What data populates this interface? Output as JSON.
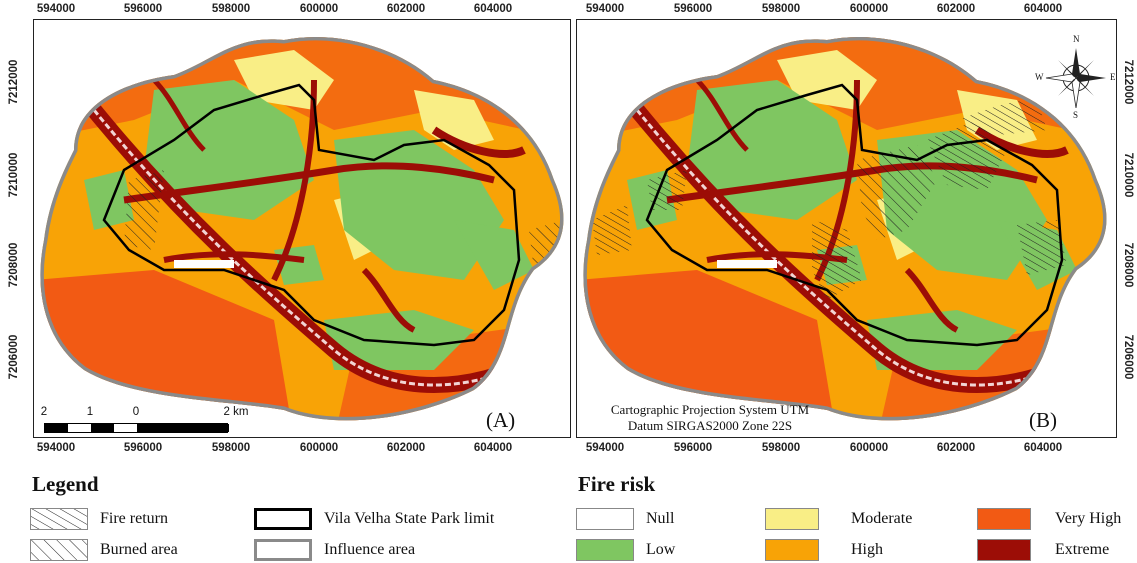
{
  "axes": {
    "x_ticks": [
      "594000",
      "596000",
      "598000",
      "600000",
      "602000",
      "604000"
    ],
    "y_ticks": [
      "7212000",
      "7210000",
      "7208000",
      "7206000"
    ]
  },
  "panels": [
    {
      "label": "(A)"
    },
    {
      "label": "(B)"
    }
  ],
  "scalebar": {
    "labels": [
      "2",
      "1",
      "0",
      "2 km"
    ]
  },
  "compass": {
    "n": "N",
    "s": "S",
    "e": "E",
    "w": "W"
  },
  "projection": {
    "line1": "Cartographic Projection System UTM",
    "line2": "Datum SIRGAS2000 Zone 22S"
  },
  "legend": {
    "title": "Legend",
    "items": [
      {
        "label": "Fire return"
      },
      {
        "label": "Burned area"
      },
      {
        "label": "Vila Velha State Park limit"
      },
      {
        "label": "Influence area"
      }
    ]
  },
  "fire_risk": {
    "title": "Fire risk",
    "classes": [
      {
        "label": "Null",
        "color": "#ffffff"
      },
      {
        "label": "Low",
        "color": "#7fc661"
      },
      {
        "label": "Moderate",
        "color": "#f9ee86"
      },
      {
        "label": "High",
        "color": "#f8a306"
      },
      {
        "label": "Very High",
        "color": "#f25a14"
      },
      {
        "label": "Extreme",
        "color": "#9c0d06"
      }
    ]
  }
}
